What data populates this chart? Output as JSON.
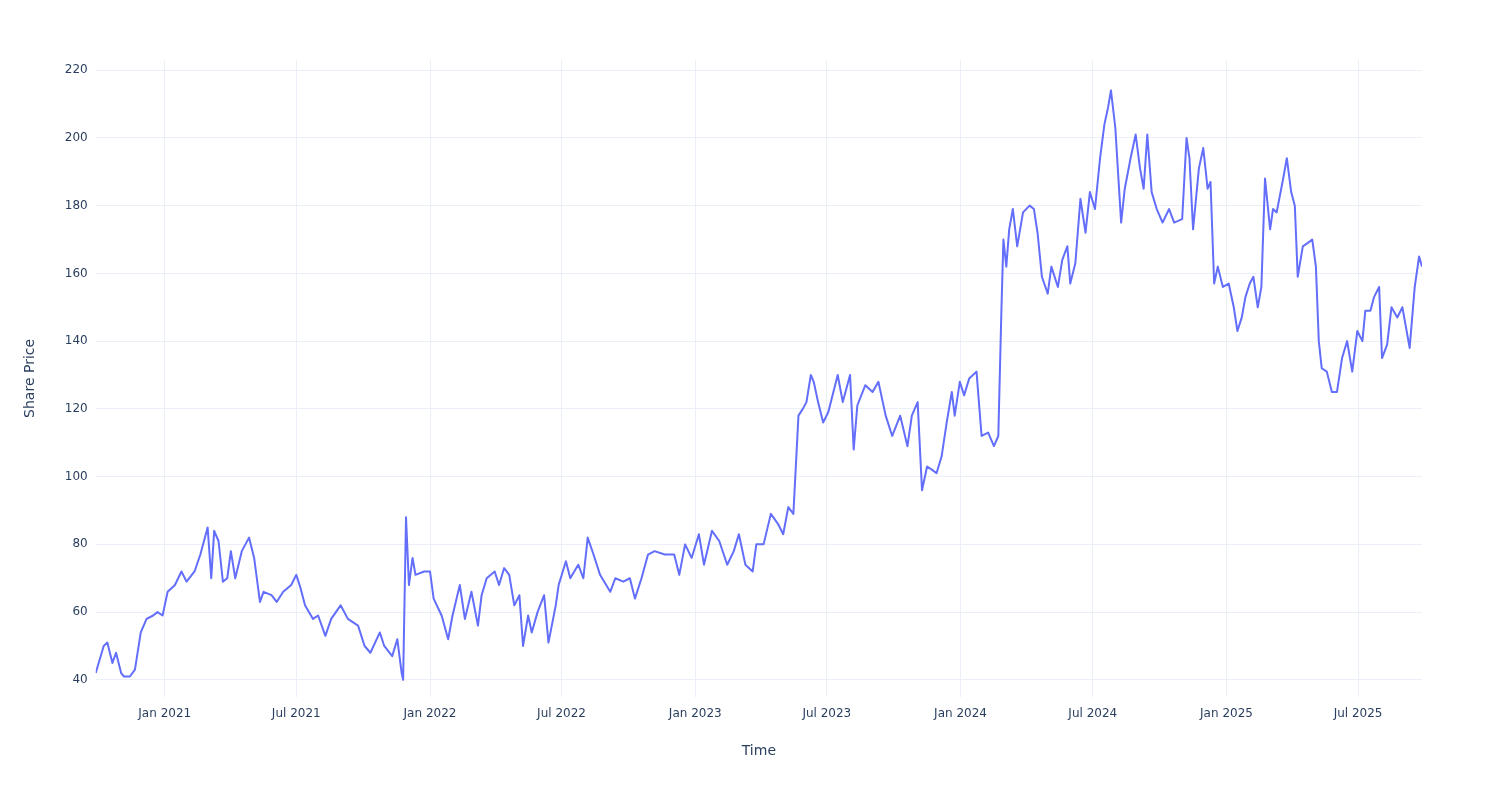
{
  "chart_data": {
    "type": "line",
    "xlabel": "Time",
    "ylabel": "Share Price",
    "grid": true,
    "legend": false,
    "marker": "none",
    "line_style": "solid",
    "xlim": [
      "2020-09-28",
      "2025-09-27"
    ],
    "xticks": [
      {
        "value": "2021-01-01",
        "label": "Jan 2021"
      },
      {
        "value": "2021-07-01",
        "label": "Jul 2021"
      },
      {
        "value": "2022-01-01",
        "label": "Jan 2022"
      },
      {
        "value": "2022-07-01",
        "label": "Jul 2022"
      },
      {
        "value": "2023-01-01",
        "label": "Jan 2023"
      },
      {
        "value": "2023-07-01",
        "label": "Jul 2023"
      },
      {
        "value": "2024-01-01",
        "label": "Jan 2024"
      },
      {
        "value": "2024-07-01",
        "label": "Jul 2024"
      },
      {
        "value": "2025-01-01",
        "label": "Jan 2025"
      },
      {
        "value": "2025-07-01",
        "label": "Jul 2025"
      }
    ],
    "ylim": [
      35,
      223
    ],
    "yticks": [
      40,
      60,
      80,
      100,
      120,
      140,
      160,
      180,
      200,
      220
    ],
    "x": [
      "2020-09-28",
      "2020-10-09",
      "2020-10-14",
      "2020-10-21",
      "2020-10-26",
      "2020-11-02",
      "2020-11-06",
      "2020-11-14",
      "2020-11-21",
      "2020-11-29",
      "2020-12-07",
      "2020-12-16",
      "2020-12-22",
      "2020-12-29",
      "2021-01-05",
      "2021-01-15",
      "2021-01-24",
      "2021-01-31",
      "2021-02-11",
      "2021-02-19",
      "2021-03-01",
      "2021-03-06",
      "2021-03-10",
      "2021-03-16",
      "2021-03-22",
      "2021-03-28",
      "2021-04-02",
      "2021-04-08",
      "2021-04-17",
      "2021-04-27",
      "2021-05-04",
      "2021-05-12",
      "2021-05-17",
      "2021-05-28",
      "2021-06-04",
      "2021-06-13",
      "2021-06-24",
      "2021-07-01",
      "2021-07-07",
      "2021-07-13",
      "2021-07-24",
      "2021-07-31",
      "2021-08-10",
      "2021-08-18",
      "2021-08-31",
      "2021-09-10",
      "2021-09-24",
      "2021-10-03",
      "2021-10-11",
      "2021-10-24",
      "2021-10-30",
      "2021-11-10",
      "2021-11-17",
      "2021-11-23",
      "2021-11-25",
      "2021-11-29",
      "2021-12-03",
      "2021-12-08",
      "2021-12-12",
      "2021-12-24",
      "2022-01-01",
      "2022-01-06",
      "2022-01-17",
      "2022-01-26",
      "2022-02-01",
      "2022-02-11",
      "2022-02-18",
      "2022-02-27",
      "2022-03-08",
      "2022-03-13",
      "2022-03-20",
      "2022-03-31",
      "2022-04-06",
      "2022-04-13",
      "2022-04-20",
      "2022-04-27",
      "2022-05-04",
      "2022-05-09",
      "2022-05-16",
      "2022-05-21",
      "2022-05-29",
      "2022-06-07",
      "2022-06-13",
      "2022-06-23",
      "2022-06-27",
      "2022-07-07",
      "2022-07-13",
      "2022-07-24",
      "2022-07-31",
      "2022-08-06",
      "2022-08-14",
      "2022-08-23",
      "2022-09-06",
      "2022-09-13",
      "2022-09-24",
      "2022-10-03",
      "2022-10-10",
      "2022-10-19",
      "2022-10-28",
      "2022-11-06",
      "2022-11-20",
      "2022-12-03",
      "2022-12-10",
      "2022-12-18",
      "2022-12-27",
      "2023-01-06",
      "2023-01-13",
      "2023-01-24",
      "2023-02-03",
      "2023-02-14",
      "2023-02-23",
      "2023-03-02",
      "2023-03-11",
      "2023-03-21",
      "2023-03-26",
      "2023-04-05",
      "2023-04-15",
      "2023-04-25",
      "2023-05-02",
      "2023-05-09",
      "2023-05-16",
      "2023-05-23",
      "2023-05-29",
      "2023-06-03",
      "2023-06-09",
      "2023-06-13",
      "2023-06-19",
      "2023-06-26",
      "2023-07-03",
      "2023-07-16",
      "2023-07-23",
      "2023-08-02",
      "2023-08-07",
      "2023-08-12",
      "2023-08-23",
      "2023-09-02",
      "2023-09-10",
      "2023-09-20",
      "2023-09-29",
      "2023-10-10",
      "2023-10-20",
      "2023-10-26",
      "2023-11-03",
      "2023-11-09",
      "2023-11-16",
      "2023-11-23",
      "2023-11-29",
      "2023-12-06",
      "2023-12-13",
      "2023-12-20",
      "2023-12-24",
      "2023-12-31",
      "2024-01-06",
      "2024-01-13",
      "2024-01-23",
      "2024-01-30",
      "2024-02-08",
      "2024-02-16",
      "2024-02-22",
      "2024-02-26",
      "2024-02-29",
      "2024-03-04",
      "2024-03-08",
      "2024-03-13",
      "2024-03-19",
      "2024-03-27",
      "2024-04-05",
      "2024-04-11",
      "2024-04-16",
      "2024-04-22",
      "2024-04-30",
      "2024-05-05",
      "2024-05-14",
      "2024-05-20",
      "2024-05-27",
      "2024-05-31",
      "2024-06-07",
      "2024-06-14",
      "2024-06-21",
      "2024-06-27",
      "2024-07-04",
      "2024-07-11",
      "2024-07-17",
      "2024-07-22",
      "2024-07-26",
      "2024-08-01",
      "2024-08-09",
      "2024-08-14",
      "2024-08-22",
      "2024-08-29",
      "2024-09-04",
      "2024-09-09",
      "2024-09-14",
      "2024-09-20",
      "2024-09-27",
      "2024-10-05",
      "2024-10-14",
      "2024-10-21",
      "2024-11-01",
      "2024-11-07",
      "2024-11-11",
      "2024-11-16",
      "2024-11-24",
      "2024-11-30",
      "2024-12-06",
      "2024-12-10",
      "2024-12-15",
      "2024-12-20",
      "2024-12-27",
      "2025-01-04",
      "2025-01-11",
      "2025-01-16",
      "2025-01-22",
      "2025-01-27",
      "2025-02-02",
      "2025-02-07",
      "2025-02-13",
      "2025-02-18",
      "2025-02-23",
      "2025-03-02",
      "2025-03-06",
      "2025-03-11",
      "2025-03-20",
      "2025-03-25",
      "2025-03-31",
      "2025-04-05",
      "2025-04-09",
      "2025-04-16",
      "2025-04-23",
      "2025-04-29",
      "2025-05-04",
      "2025-05-08",
      "2025-05-12",
      "2025-05-19",
      "2025-05-26",
      "2025-06-02",
      "2025-06-09",
      "2025-06-16",
      "2025-06-23",
      "2025-06-30",
      "2025-07-07",
      "2025-07-11",
      "2025-07-18",
      "2025-07-23",
      "2025-07-30",
      "2025-08-03",
      "2025-08-10",
      "2025-08-16",
      "2025-08-24",
      "2025-08-31",
      "2025-09-10",
      "2025-09-17",
      "2025-09-23",
      "2025-09-27"
    ],
    "series": [
      {
        "color": "#636efa",
        "values": [
          42,
          50,
          51,
          45,
          48,
          42,
          41,
          41,
          43,
          54,
          58,
          59,
          60,
          59,
          66,
          68,
          72,
          69,
          72,
          77,
          85,
          70,
          84,
          81,
          69,
          70,
          78,
          70,
          78,
          82,
          76,
          63,
          66,
          65,
          63,
          66,
          68,
          71,
          67,
          62,
          58,
          59,
          53,
          58,
          62,
          58,
          56,
          50,
          48,
          54,
          50,
          47,
          52,
          42,
          40,
          88,
          68,
          76,
          71,
          72,
          72,
          64,
          59,
          52,
          59,
          68,
          58,
          66,
          56,
          65,
          70,
          72,
          68,
          73,
          71,
          62,
          65,
          50,
          59,
          54,
          60,
          65,
          51,
          62,
          68,
          75,
          70,
          74,
          70,
          82,
          77,
          71,
          66,
          70,
          69,
          70,
          64,
          70,
          77,
          78,
          77,
          77,
          71,
          80,
          76,
          83,
          74,
          84,
          81,
          74,
          78,
          83,
          74,
          72,
          80,
          80,
          89,
          86,
          83,
          91,
          89,
          118,
          120,
          122,
          130,
          128,
          122,
          116,
          119,
          130,
          122,
          130,
          108,
          121,
          127,
          125,
          128,
          118,
          112,
          118,
          109,
          118,
          122,
          96,
          103,
          102,
          101,
          106,
          116,
          125,
          118,
          128,
          124,
          129,
          131,
          112,
          113,
          109,
          112,
          147,
          170,
          162,
          173,
          179,
          168,
          178,
          180,
          179,
          172,
          159,
          154,
          162,
          156,
          164,
          168,
          157,
          163,
          182,
          172,
          184,
          179,
          194,
          204,
          209,
          214,
          203,
          175,
          185,
          194,
          201,
          191,
          185,
          201,
          184,
          179,
          175,
          179,
          175,
          176,
          200,
          194,
          173,
          191,
          197,
          185,
          187,
          157,
          162,
          156,
          157,
          150,
          143,
          147,
          153,
          157,
          159,
          150,
          156,
          188,
          173,
          179,
          178,
          188,
          194,
          184,
          180,
          159,
          168,
          169,
          170,
          162,
          140,
          132,
          131,
          125,
          125,
          135,
          140,
          131,
          143,
          140,
          149,
          149,
          153,
          156,
          135,
          139,
          150,
          147,
          150,
          138,
          156,
          165,
          162
        ]
      }
    ]
  }
}
